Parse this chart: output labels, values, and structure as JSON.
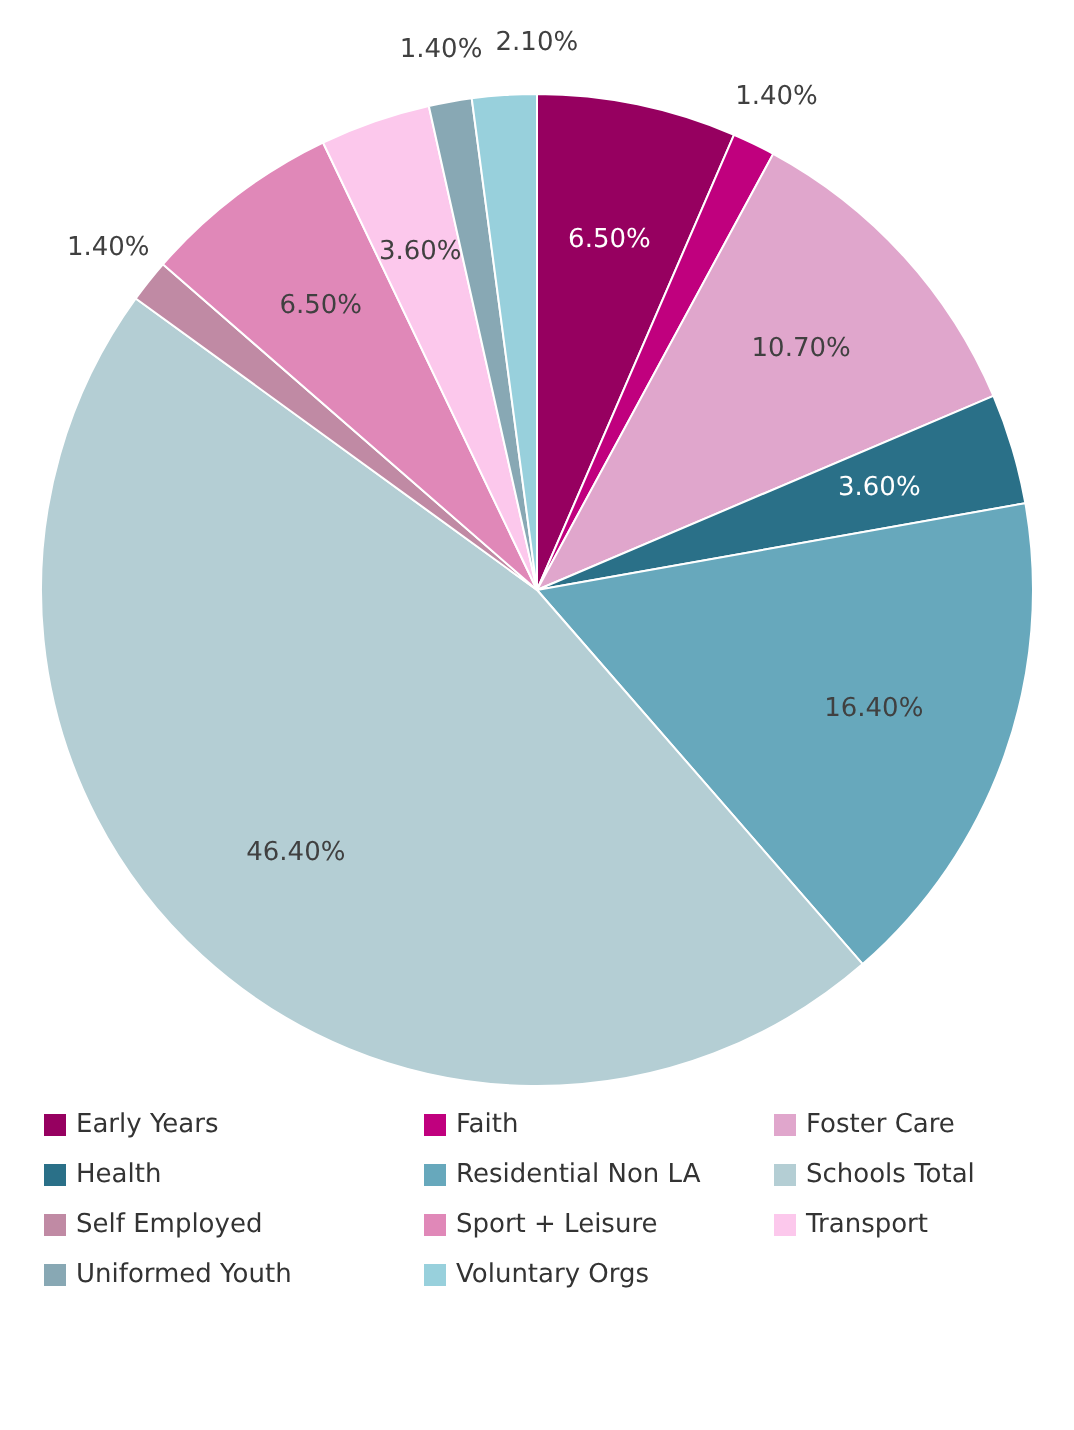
{
  "chart_data": {
    "type": "pie",
    "categories": [
      "Early Years",
      "Faith",
      "Foster Care",
      "Health",
      "Residential Non LA",
      "Schools Total",
      "Self Employed",
      "Sport + Leisure",
      "Transport",
      "Uniformed Youth",
      "Voluntary Orgs"
    ],
    "values": [
      6.5,
      1.4,
      10.7,
      3.6,
      16.4,
      46.4,
      1.4,
      6.5,
      3.6,
      1.4,
      2.1
    ],
    "value_labels": [
      "6.50%",
      "1.40%",
      "10.70%",
      "3.60%",
      "16.40%",
      "46.40%",
      "1.40%",
      "6.50%",
      "3.60%",
      "1.40%",
      "2.10%"
    ],
    "colors": [
      "#960060",
      "#c0007e",
      "#e0a6cc",
      "#2a7088",
      "#67a8bc",
      "#b4ced4",
      "#c08aa4",
      "#e088b8",
      "#fcc8ec",
      "#88a8b4",
      "#98d0dc"
    ],
    "legend": "bottom"
  }
}
